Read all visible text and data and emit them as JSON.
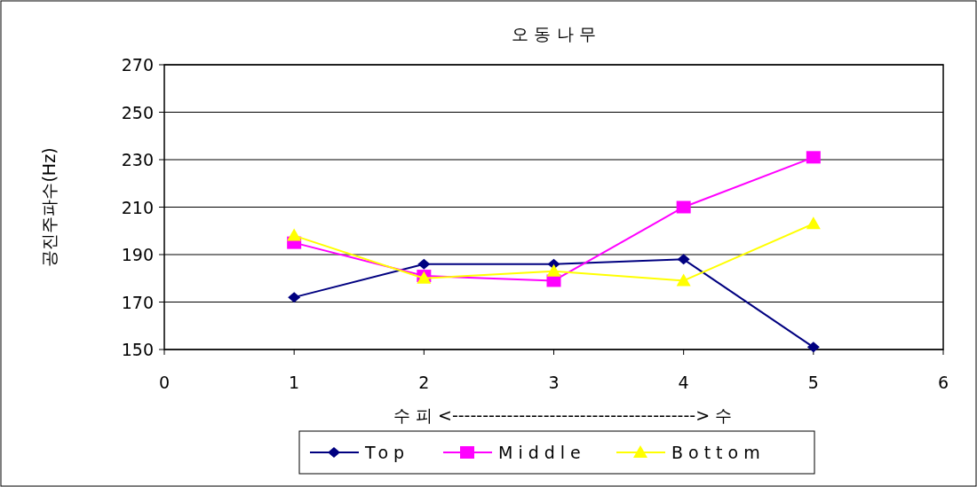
{
  "chart_data": {
    "type": "line",
    "title": "오 동 나 무",
    "xlabel": "수 피 <----------------------------------------> 수",
    "ylabel": "공진주파수(Hz)",
    "x": [
      1,
      2,
      3,
      4,
      5
    ],
    "xlim": [
      0,
      6
    ],
    "xticks": [
      0,
      1,
      2,
      3,
      4,
      5,
      6
    ],
    "ylim": [
      150,
      270
    ],
    "yticks": [
      150,
      170,
      190,
      210,
      230,
      250,
      270
    ],
    "grid": "y",
    "legend": "bottom",
    "series": [
      {
        "name": "Top",
        "color": "#000080",
        "marker": "diamond",
        "values": [
          172,
          186,
          186,
          188,
          151
        ]
      },
      {
        "name": "Middle",
        "color": "#ff00ff",
        "marker": "square",
        "values": [
          195,
          181,
          179,
          210,
          231
        ]
      },
      {
        "name": "Bottom",
        "color": "#ffff00",
        "marker": "triangle",
        "values": [
          198,
          180,
          183,
          179,
          203
        ]
      }
    ]
  }
}
